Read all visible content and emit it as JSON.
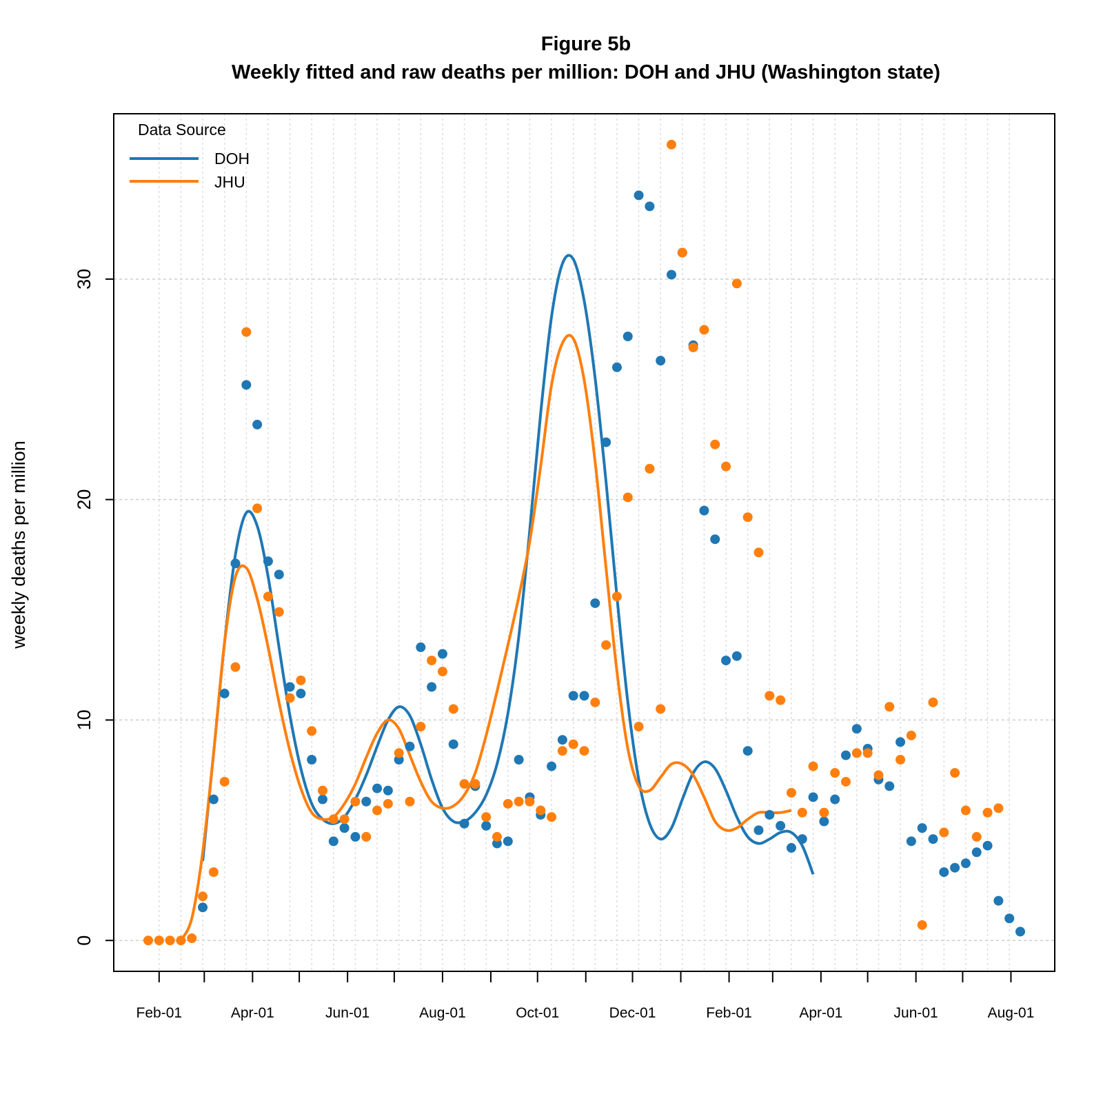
{
  "chart_data": {
    "type": "scatter",
    "title": "Figure 5b",
    "subtitle": "Weekly fitted and raw deaths per million: DOH and JHU (Washington state)",
    "xlabel": "",
    "ylabel": "weekly deaths per million",
    "x_tick_labels": [
      "Feb-01",
      "Apr-01",
      "Jun-01",
      "Aug-01",
      "Oct-01",
      "Dec-01",
      "Feb-01",
      "Apr-01",
      "Jun-01",
      "Aug-01"
    ],
    "y_ticks": [
      0,
      10,
      20,
      30
    ],
    "ylim": [
      -1.4,
      37.5
    ],
    "grid": true,
    "legend": {
      "title": "Data Source",
      "placement": "top-left"
    },
    "series": [
      {
        "name": "DOH",
        "color": "#1f77b4",
        "points": [
          [
            "2020-02-29",
            1.5
          ],
          [
            "2020-03-07",
            6.4
          ],
          [
            "2020-03-14",
            11.2
          ],
          [
            "2020-03-21",
            17.1
          ],
          [
            "2020-03-28",
            25.2
          ],
          [
            "2020-04-04",
            23.4
          ],
          [
            "2020-04-11",
            17.2
          ],
          [
            "2020-04-18",
            16.6
          ],
          [
            "2020-04-25",
            11.5
          ],
          [
            "2020-05-02",
            11.2
          ],
          [
            "2020-05-09",
            8.2
          ],
          [
            "2020-05-16",
            6.4
          ],
          [
            "2020-05-23",
            4.5
          ],
          [
            "2020-05-30",
            5.1
          ],
          [
            "2020-06-06",
            4.7
          ],
          [
            "2020-06-13",
            6.3
          ],
          [
            "2020-06-20",
            6.9
          ],
          [
            "2020-06-27",
            6.8
          ],
          [
            "2020-07-04",
            8.2
          ],
          [
            "2020-07-11",
            8.8
          ],
          [
            "2020-07-18",
            13.3
          ],
          [
            "2020-07-25",
            11.5
          ],
          [
            "2020-08-01",
            13.0
          ],
          [
            "2020-08-08",
            8.9
          ],
          [
            "2020-08-15",
            5.3
          ],
          [
            "2020-08-22",
            7.0
          ],
          [
            "2020-08-29",
            5.2
          ],
          [
            "2020-09-05",
            4.4
          ],
          [
            "2020-09-12",
            4.5
          ],
          [
            "2020-09-19",
            8.2
          ],
          [
            "2020-09-26",
            6.5
          ],
          [
            "2020-10-03",
            5.7
          ],
          [
            "2020-10-10",
            7.9
          ],
          [
            "2020-10-17",
            9.1
          ],
          [
            "2020-10-24",
            11.1
          ],
          [
            "2020-10-31",
            11.1
          ],
          [
            "2020-11-07",
            15.3
          ],
          [
            "2020-11-14",
            22.6
          ],
          [
            "2020-11-21",
            26.0
          ],
          [
            "2020-11-28",
            27.4
          ],
          [
            "2020-12-05",
            33.8
          ],
          [
            "2020-12-12",
            33.3
          ],
          [
            "2020-12-19",
            26.3
          ],
          [
            "2020-12-26",
            30.2
          ],
          [
            "2021-01-02",
            31.2
          ],
          [
            "2021-01-09",
            27.0
          ],
          [
            "2021-01-16",
            19.5
          ],
          [
            "2021-01-23",
            18.2
          ],
          [
            "2021-01-30",
            12.7
          ],
          [
            "2021-02-06",
            12.9
          ],
          [
            "2021-02-13",
            8.6
          ],
          [
            "2021-02-20",
            5.0
          ],
          [
            "2021-02-27",
            5.7
          ],
          [
            "2021-03-06",
            5.2
          ],
          [
            "2021-03-13",
            4.2
          ],
          [
            "2021-03-20",
            4.6
          ],
          [
            "2021-03-27",
            6.5
          ],
          [
            "2021-04-03",
            5.4
          ],
          [
            "2021-04-10",
            6.4
          ],
          [
            "2021-04-17",
            8.4
          ],
          [
            "2021-04-24",
            9.6
          ],
          [
            "2021-05-01",
            8.7
          ],
          [
            "2021-05-08",
            7.3
          ],
          [
            "2021-05-15",
            7.0
          ],
          [
            "2021-05-22",
            9.0
          ],
          [
            "2021-05-29",
            4.5
          ],
          [
            "2021-06-05",
            5.1
          ],
          [
            "2021-06-12",
            4.6
          ],
          [
            "2021-06-19",
            3.1
          ],
          [
            "2021-06-26",
            3.3
          ],
          [
            "2021-07-03",
            3.5
          ],
          [
            "2021-07-10",
            4.0
          ],
          [
            "2021-07-17",
            4.3
          ],
          [
            "2021-07-24",
            1.8
          ],
          [
            "2021-07-31",
            1.0
          ],
          [
            "2021-08-07",
            0.4
          ]
        ],
        "fitted": [
          [
            "2020-02-29",
            3.6
          ],
          [
            "2020-03-07",
            8.5
          ],
          [
            "2020-03-14",
            13.5
          ],
          [
            "2020-03-21",
            17.5
          ],
          [
            "2020-03-28",
            19.4
          ],
          [
            "2020-04-04",
            18.8
          ],
          [
            "2020-04-11",
            16.5
          ],
          [
            "2020-04-18",
            13.3
          ],
          [
            "2020-04-25",
            10.2
          ],
          [
            "2020-05-02",
            7.8
          ],
          [
            "2020-05-09",
            6.2
          ],
          [
            "2020-05-16",
            5.5
          ],
          [
            "2020-05-23",
            5.3
          ],
          [
            "2020-05-30",
            5.6
          ],
          [
            "2020-06-06",
            6.4
          ],
          [
            "2020-06-13",
            7.5
          ],
          [
            "2020-06-20",
            8.8
          ],
          [
            "2020-06-27",
            10.0
          ],
          [
            "2020-07-04",
            10.6
          ],
          [
            "2020-07-11",
            10.2
          ],
          [
            "2020-07-18",
            8.9
          ],
          [
            "2020-07-25",
            7.3
          ],
          [
            "2020-08-01",
            6.0
          ],
          [
            "2020-08-08",
            5.4
          ],
          [
            "2020-08-15",
            5.4
          ],
          [
            "2020-08-22",
            5.8
          ],
          [
            "2020-08-29",
            6.6
          ],
          [
            "2020-09-05",
            8.0
          ],
          [
            "2020-09-12",
            10.3
          ],
          [
            "2020-09-19",
            13.8
          ],
          [
            "2020-09-26",
            18.6
          ],
          [
            "2020-10-03",
            23.9
          ],
          [
            "2020-10-10",
            28.3
          ],
          [
            "2020-10-17",
            30.7
          ],
          [
            "2020-10-24",
            30.9
          ],
          [
            "2020-10-31",
            29.0
          ],
          [
            "2020-11-07",
            25.5
          ],
          [
            "2020-11-14",
            20.8
          ],
          [
            "2020-11-21",
            15.6
          ],
          [
            "2020-11-28",
            10.8
          ],
          [
            "2020-12-05",
            7.3
          ],
          [
            "2020-12-12",
            5.3
          ],
          [
            "2020-12-19",
            4.6
          ],
          [
            "2020-12-26",
            5.1
          ],
          [
            "2021-01-02",
            6.4
          ],
          [
            "2021-01-09",
            7.6
          ],
          [
            "2021-01-16",
            8.1
          ],
          [
            "2021-01-23",
            7.8
          ],
          [
            "2021-01-30",
            6.8
          ],
          [
            "2021-02-06",
            5.6
          ],
          [
            "2021-02-13",
            4.7
          ],
          [
            "2021-02-20",
            4.4
          ],
          [
            "2021-02-27",
            4.6
          ],
          [
            "2021-03-06",
            4.9
          ],
          [
            "2021-03-13",
            4.9
          ],
          [
            "2021-03-20",
            4.3
          ],
          [
            "2021-03-27",
            3.0
          ]
        ]
      },
      {
        "name": "JHU",
        "color": "#ff7f0e",
        "points": [
          [
            "2020-01-25",
            0.0
          ],
          [
            "2020-02-01",
            0.0
          ],
          [
            "2020-02-08",
            0.0
          ],
          [
            "2020-02-15",
            0.0
          ],
          [
            "2020-02-22",
            0.1
          ],
          [
            "2020-02-29",
            2.0
          ],
          [
            "2020-03-07",
            3.1
          ],
          [
            "2020-03-14",
            7.2
          ],
          [
            "2020-03-21",
            12.4
          ],
          [
            "2020-03-28",
            27.6
          ],
          [
            "2020-04-04",
            19.6
          ],
          [
            "2020-04-11",
            15.6
          ],
          [
            "2020-04-18",
            14.9
          ],
          [
            "2020-04-25",
            11.0
          ],
          [
            "2020-05-02",
            11.8
          ],
          [
            "2020-05-09",
            9.5
          ],
          [
            "2020-05-16",
            6.8
          ],
          [
            "2020-05-23",
            5.5
          ],
          [
            "2020-05-30",
            5.5
          ],
          [
            "2020-06-06",
            6.3
          ],
          [
            "2020-06-13",
            4.7
          ],
          [
            "2020-06-20",
            5.9
          ],
          [
            "2020-06-27",
            6.2
          ],
          [
            "2020-07-04",
            8.5
          ],
          [
            "2020-07-11",
            6.3
          ],
          [
            "2020-07-18",
            9.7
          ],
          [
            "2020-07-25",
            12.7
          ],
          [
            "2020-08-01",
            12.2
          ],
          [
            "2020-08-08",
            10.5
          ],
          [
            "2020-08-15",
            7.1
          ],
          [
            "2020-08-22",
            7.1
          ],
          [
            "2020-08-29",
            5.6
          ],
          [
            "2020-09-05",
            4.7
          ],
          [
            "2020-09-12",
            6.2
          ],
          [
            "2020-09-19",
            6.3
          ],
          [
            "2020-09-26",
            6.3
          ],
          [
            "2020-10-03",
            5.9
          ],
          [
            "2020-10-10",
            5.6
          ],
          [
            "2020-10-17",
            8.6
          ],
          [
            "2020-10-24",
            8.9
          ],
          [
            "2020-10-31",
            8.6
          ],
          [
            "2020-11-07",
            10.8
          ],
          [
            "2020-11-14",
            13.4
          ],
          [
            "2020-11-21",
            15.6
          ],
          [
            "2020-11-28",
            20.1
          ],
          [
            "2020-12-05",
            9.7
          ],
          [
            "2020-12-12",
            21.4
          ],
          [
            "2020-12-19",
            10.5
          ],
          [
            "2020-12-26",
            36.1
          ],
          [
            "2021-01-02",
            31.2
          ],
          [
            "2021-01-09",
            26.9
          ],
          [
            "2021-01-16",
            27.7
          ],
          [
            "2021-01-23",
            22.5
          ],
          [
            "2021-01-30",
            21.5
          ],
          [
            "2021-02-06",
            29.8
          ],
          [
            "2021-02-13",
            19.2
          ],
          [
            "2021-02-20",
            17.6
          ],
          [
            "2021-02-27",
            11.1
          ],
          [
            "2021-03-06",
            10.9
          ],
          [
            "2021-03-13",
            6.7
          ],
          [
            "2021-03-20",
            5.8
          ],
          [
            "2021-03-27",
            7.9
          ],
          [
            "2021-04-03",
            5.8
          ],
          [
            "2021-04-10",
            7.6
          ],
          [
            "2021-04-17",
            7.2
          ],
          [
            "2021-04-24",
            8.5
          ],
          [
            "2021-05-01",
            8.5
          ],
          [
            "2021-05-08",
            7.5
          ],
          [
            "2021-05-15",
            10.6
          ],
          [
            "2021-05-22",
            8.2
          ],
          [
            "2021-05-29",
            9.3
          ],
          [
            "2021-06-05",
            0.7
          ],
          [
            "2021-06-12",
            10.8
          ],
          [
            "2021-06-19",
            4.9
          ],
          [
            "2021-06-26",
            7.6
          ],
          [
            "2021-07-03",
            5.9
          ],
          [
            "2021-07-10",
            4.7
          ],
          [
            "2021-07-17",
            5.8
          ],
          [
            "2021-07-24",
            6.0
          ]
        ],
        "fitted": [
          [
            "2020-02-15",
            0.0
          ],
          [
            "2020-02-22",
            1.0
          ],
          [
            "2020-02-29",
            4.0
          ],
          [
            "2020-03-07",
            8.5
          ],
          [
            "2020-03-14",
            13.5
          ],
          [
            "2020-03-21",
            16.5
          ],
          [
            "2020-03-28",
            16.9
          ],
          [
            "2020-04-04",
            15.5
          ],
          [
            "2020-04-11",
            13.3
          ],
          [
            "2020-04-18",
            10.8
          ],
          [
            "2020-04-25",
            8.6
          ],
          [
            "2020-05-02",
            6.9
          ],
          [
            "2020-05-09",
            5.8
          ],
          [
            "2020-05-16",
            5.5
          ],
          [
            "2020-05-23",
            5.6
          ],
          [
            "2020-05-30",
            6.2
          ],
          [
            "2020-06-06",
            7.1
          ],
          [
            "2020-06-13",
            8.3
          ],
          [
            "2020-06-20",
            9.4
          ],
          [
            "2020-06-27",
            10.0
          ],
          [
            "2020-07-04",
            9.6
          ],
          [
            "2020-07-11",
            8.4
          ],
          [
            "2020-07-18",
            7.2
          ],
          [
            "2020-07-25",
            6.3
          ],
          [
            "2020-08-01",
            6.0
          ],
          [
            "2020-08-08",
            6.1
          ],
          [
            "2020-08-15",
            6.6
          ],
          [
            "2020-08-22",
            7.6
          ],
          [
            "2020-08-29",
            9.3
          ],
          [
            "2020-09-05",
            11.3
          ],
          [
            "2020-09-12",
            13.4
          ],
          [
            "2020-09-19",
            15.6
          ],
          [
            "2020-09-26",
            18.1
          ],
          [
            "2020-10-03",
            21.5
          ],
          [
            "2020-10-10",
            25.2
          ],
          [
            "2020-10-17",
            27.1
          ],
          [
            "2020-10-24",
            27.3
          ],
          [
            "2020-10-31",
            25.4
          ],
          [
            "2020-11-07",
            21.7
          ],
          [
            "2020-11-14",
            16.9
          ],
          [
            "2020-11-21",
            12.2
          ],
          [
            "2020-11-28",
            8.7
          ],
          [
            "2020-12-05",
            7.0
          ],
          [
            "2020-12-12",
            6.8
          ],
          [
            "2020-12-19",
            7.4
          ],
          [
            "2020-12-26",
            8.0
          ],
          [
            "2021-01-02",
            8.0
          ],
          [
            "2021-01-09",
            7.5
          ],
          [
            "2021-01-16",
            6.5
          ],
          [
            "2021-01-23",
            5.4
          ],
          [
            "2021-01-30",
            5.0
          ],
          [
            "2021-02-06",
            5.1
          ],
          [
            "2021-02-13",
            5.5
          ],
          [
            "2021-02-20",
            5.8
          ],
          [
            "2021-02-27",
            5.8
          ],
          [
            "2021-03-06",
            5.8
          ],
          [
            "2021-03-13",
            5.9
          ]
        ]
      }
    ]
  }
}
